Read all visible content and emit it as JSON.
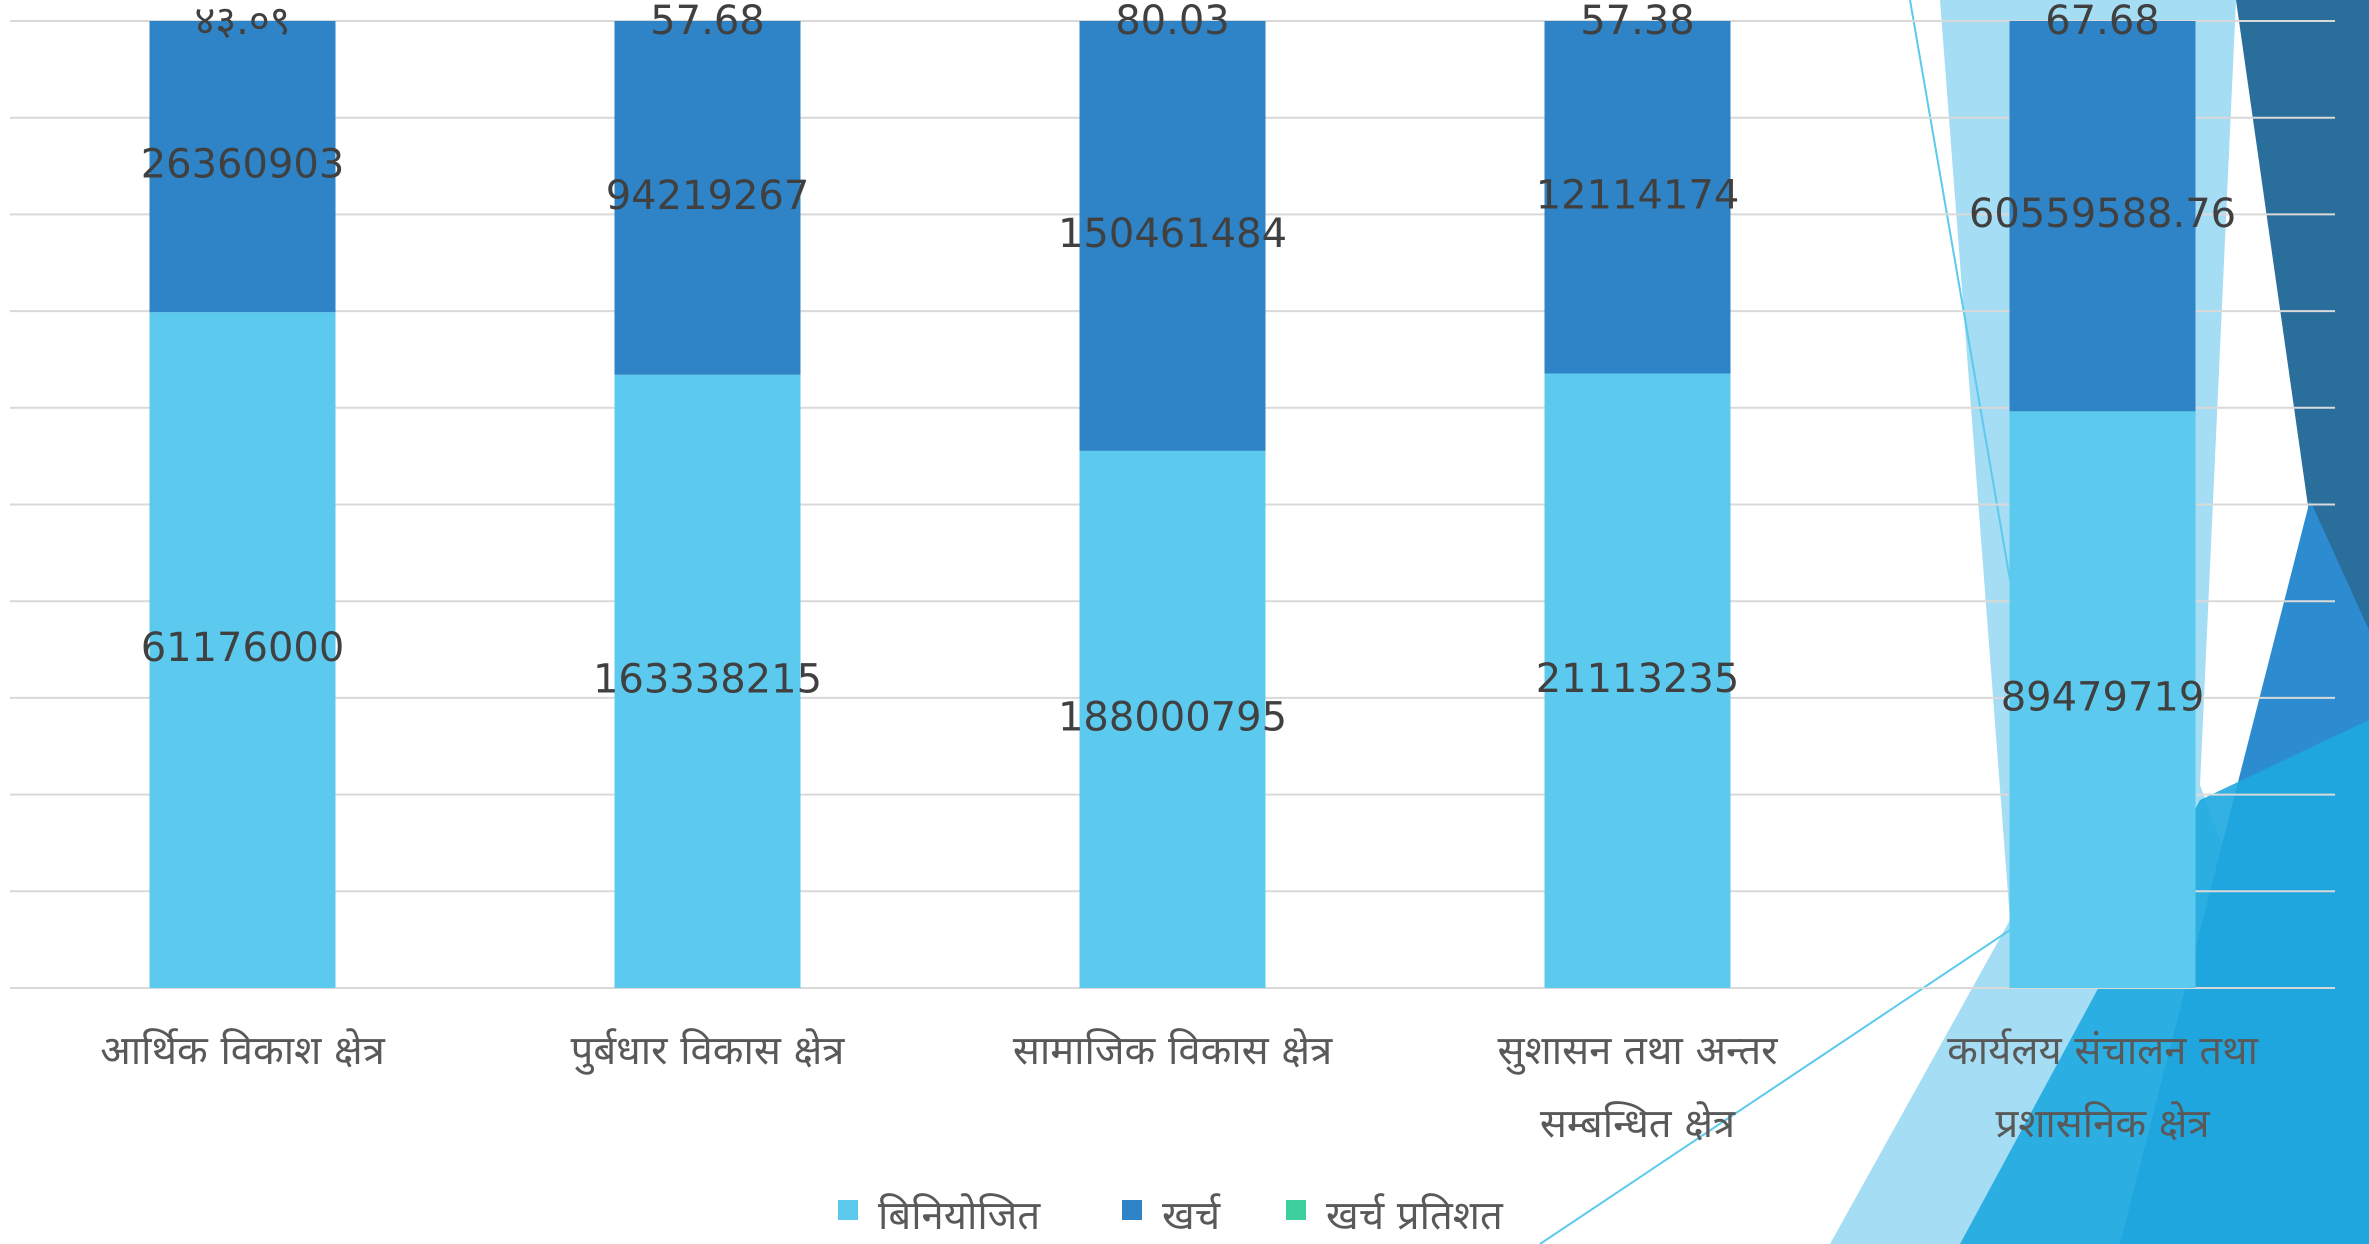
{
  "chart_data": {
    "type": "bar",
    "stacking": "percent",
    "categories": [
      [
        "आर्थिक विकाश क्षेत्र"
      ],
      [
        "पुर्बधार विकास क्षेत्र"
      ],
      [
        "सामाजिक विकास क्षेत्र"
      ],
      [
        "सुशासन तथा अन्तर",
        "सम्बन्धित क्षेत्र"
      ],
      [
        "कार्यलय संचालन तथा",
        "प्रशासनिक  क्षेत्र"
      ]
    ],
    "series": [
      {
        "name": "बिनियोजित",
        "color": "#5ccaee",
        "values": [
          61176000,
          163338215,
          188000795,
          21113235,
          89479719
        ]
      },
      {
        "name": "खर्च",
        "color": "#2e84c6",
        "values": [
          26360903,
          94219267,
          150461484,
          12114174,
          60559588.76
        ]
      },
      {
        "name": "खर्च प्रतिशत",
        "color": "#3dcf9c",
        "values": [
          43.09,
          57.68,
          80.03,
          57.38,
          67.68
        ],
        "value_labels": [
          "४३.०९",
          "57.68",
          "80.03",
          "57.38",
          "67.68"
        ]
      }
    ],
    "ylim": [
      0,
      100
    ],
    "yticks": [
      0,
      10,
      20,
      30,
      40,
      50,
      60,
      70,
      80,
      90,
      100
    ],
    "grid": true,
    "show_tick_labels": false,
    "legend": "bottom"
  }
}
